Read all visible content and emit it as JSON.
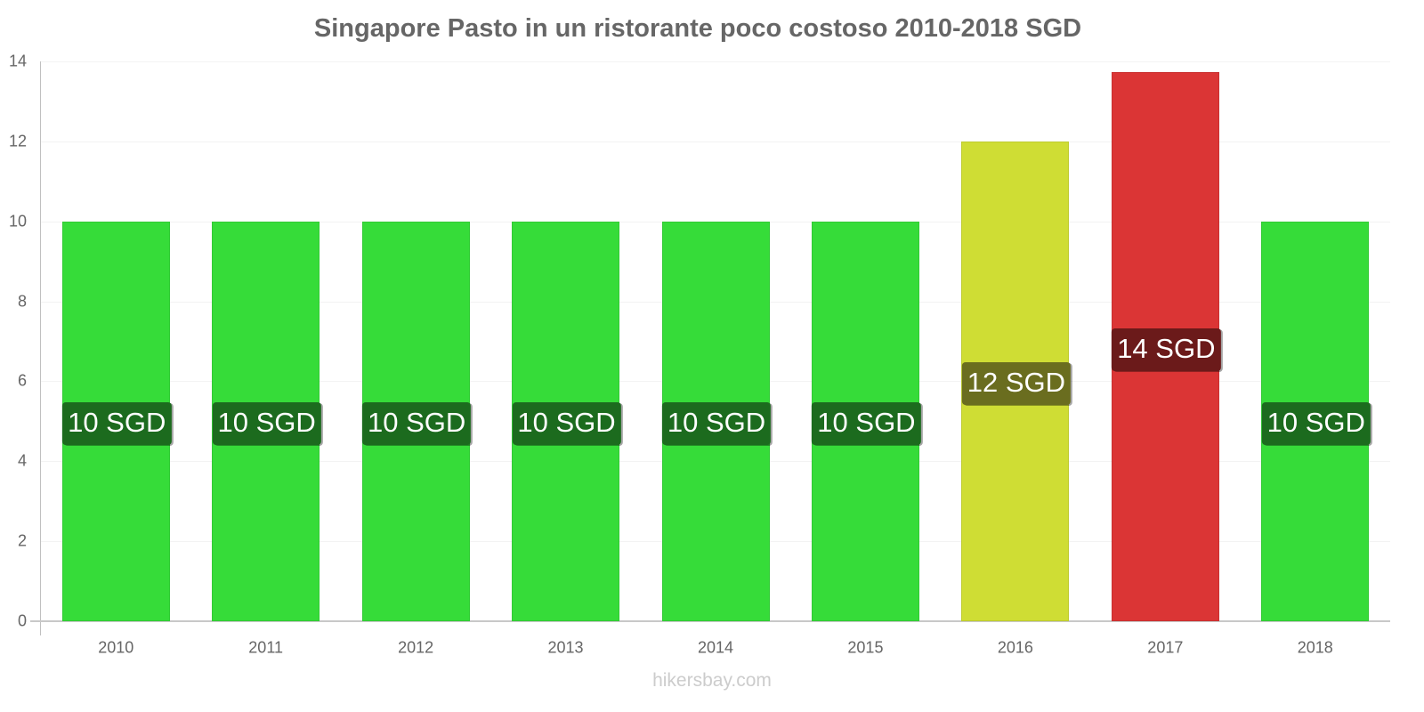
{
  "chart_data": {
    "type": "bar",
    "title": "Singapore Pasto in un ristorante poco costoso 2010-2018 SGD",
    "xlabel": "",
    "ylabel": "",
    "ylim": [
      0,
      14
    ],
    "yticks": [
      0,
      2,
      4,
      6,
      8,
      10,
      12,
      14
    ],
    "grid": true,
    "legend": null,
    "categories": [
      "2010",
      "2011",
      "2012",
      "2013",
      "2014",
      "2015",
      "2016",
      "2017",
      "2018"
    ],
    "values": [
      10,
      10,
      10,
      10,
      10,
      10,
      12,
      13.73,
      10
    ],
    "data_labels": [
      "10 SGD",
      "10 SGD",
      "10 SGD",
      "10 SGD",
      "10 SGD",
      "10 SGD",
      "12 SGD",
      "14 SGD",
      "10 SGD"
    ],
    "bar_colors": [
      "#36dc39",
      "#36dc39",
      "#36dc39",
      "#36dc39",
      "#36dc39",
      "#36dc39",
      "#cfdd34",
      "#db3535",
      "#36dc39"
    ],
    "label_colors": [
      "#1c6b1e",
      "#1c6b1e",
      "#1c6b1e",
      "#1c6b1e",
      "#1c6b1e",
      "#1c6b1e",
      "#6a6d1f",
      "#6b1a1a",
      "#1c6b1e"
    ],
    "unit": "SGD"
  },
  "footer": {
    "source": "hikersbay.com"
  }
}
